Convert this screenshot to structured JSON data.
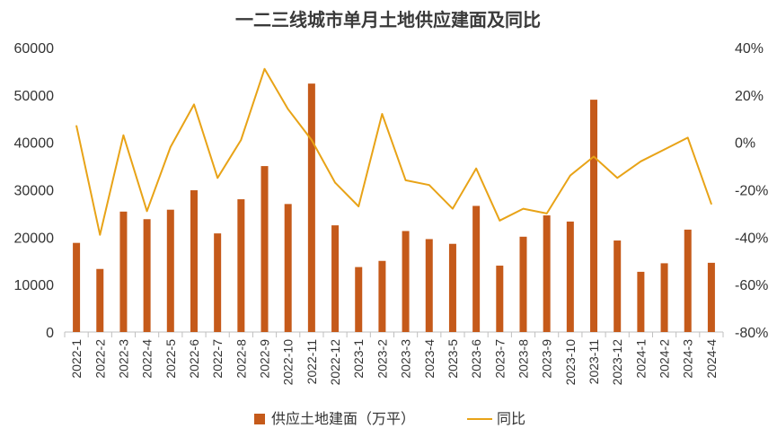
{
  "chart_data": {
    "type": "bar+line",
    "title": "一二三线城市单月土地供应建面及同比",
    "categories": [
      "2022-1",
      "2022-2",
      "2022-3",
      "2022-4",
      "2022-5",
      "2022-6",
      "2022-7",
      "2022-8",
      "2022-9",
      "2022-10",
      "2022-11",
      "2022-12",
      "2023-1",
      "2023-2",
      "2023-3",
      "2023-4",
      "2023-5",
      "2023-6",
      "2023-7",
      "2023-8",
      "2023-9",
      "2023-10",
      "2023-11",
      "2023-12",
      "2024-1",
      "2024-2",
      "2024-3",
      "2024-4"
    ],
    "series": [
      {
        "name": "供应土地建面（万平）",
        "type": "bar",
        "axis": "left",
        "color": "#c55a1a",
        "values": [
          18800,
          13300,
          25400,
          23800,
          25800,
          29900,
          20800,
          28000,
          35000,
          27000,
          52400,
          22500,
          13700,
          15000,
          21300,
          19600,
          18600,
          26600,
          14000,
          20100,
          24600,
          23300,
          49000,
          19300,
          12700,
          14500,
          21600,
          14600
        ]
      },
      {
        "name": "同比",
        "type": "line",
        "axis": "right",
        "color": "#e8a317",
        "values": [
          7,
          -39,
          3,
          -29,
          -2,
          16,
          -15,
          1,
          31,
          14,
          1,
          -17,
          -27,
          12,
          -16,
          -18,
          -28,
          -11,
          -33,
          -28,
          -30,
          -14,
          -6,
          -15,
          -8,
          -3,
          2,
          -26
        ]
      }
    ],
    "y_left": {
      "min": 0,
      "max": 60000,
      "ticks": [
        "0",
        "10000",
        "20000",
        "30000",
        "40000",
        "50000",
        "60000"
      ]
    },
    "y_right": {
      "min": -80,
      "max": 40,
      "ticks": [
        "-80%",
        "-60%",
        "-40%",
        "-20%",
        "0%",
        "20%",
        "40%"
      ]
    },
    "legend": {
      "position": "bottom",
      "items": [
        "供应土地建面（万平）",
        "同比"
      ]
    },
    "grid": false
  }
}
